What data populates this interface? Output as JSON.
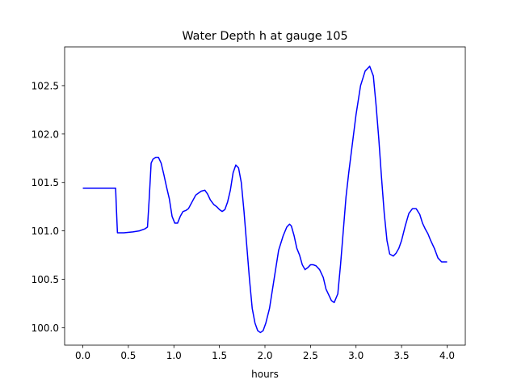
{
  "chart_data": {
    "type": "line",
    "title": "Water Depth h at gauge 105",
    "xlabel": "hours",
    "ylabel": "",
    "xlim": [
      -0.2,
      4.2
    ],
    "ylim": [
      99.82,
      102.9
    ],
    "x_ticks": [
      0.0,
      0.5,
      1.0,
      1.5,
      2.0,
      2.5,
      3.0,
      3.5,
      4.0
    ],
    "x_tick_labels": [
      "0.0",
      "0.5",
      "1.0",
      "1.5",
      "2.0",
      "2.5",
      "3.0",
      "3.5",
      "4.0"
    ],
    "y_ticks": [
      100.0,
      100.5,
      101.0,
      101.5,
      102.0,
      102.5
    ],
    "y_tick_labels": [
      "100.0",
      "100.5",
      "101.0",
      "101.5",
      "102.0",
      "102.5"
    ],
    "grid": false,
    "series": [
      {
        "color": "#0000ff",
        "x": [
          0.0,
          0.1,
          0.2,
          0.3,
          0.36,
          0.37,
          0.38,
          0.45,
          0.55,
          0.62,
          0.68,
          0.71,
          0.73,
          0.75,
          0.77,
          0.8,
          0.83,
          0.86,
          0.89,
          0.92,
          0.95,
          0.98,
          1.01,
          1.04,
          1.07,
          1.1,
          1.13,
          1.16,
          1.2,
          1.24,
          1.27,
          1.3,
          1.34,
          1.37,
          1.4,
          1.44,
          1.47,
          1.5,
          1.53,
          1.56,
          1.59,
          1.62,
          1.65,
          1.68,
          1.71,
          1.74,
          1.77,
          1.8,
          1.83,
          1.86,
          1.89,
          1.92,
          1.95,
          1.98,
          2.01,
          2.05,
          2.1,
          2.15,
          2.2,
          2.24,
          2.27,
          2.29,
          2.32,
          2.35,
          2.38,
          2.41,
          2.44,
          2.47,
          2.5,
          2.53,
          2.56,
          2.6,
          2.64,
          2.67,
          2.7,
          2.73,
          2.76,
          2.8,
          2.83,
          2.86,
          2.89,
          2.92,
          2.96,
          3.0,
          3.05,
          3.1,
          3.15,
          3.19,
          3.22,
          3.25,
          3.28,
          3.31,
          3.34,
          3.37,
          3.41,
          3.44,
          3.47,
          3.5,
          3.54,
          3.58,
          3.62,
          3.66,
          3.7,
          3.73,
          3.76,
          3.79,
          3.82,
          3.86,
          3.9,
          3.94,
          3.98,
          4.0
        ],
        "y": [
          101.44,
          101.44,
          101.44,
          101.44,
          101.44,
          101.2,
          100.98,
          100.98,
          100.99,
          101.0,
          101.02,
          101.04,
          101.35,
          101.7,
          101.74,
          101.76,
          101.76,
          101.7,
          101.58,
          101.45,
          101.33,
          101.15,
          101.08,
          101.08,
          101.15,
          101.2,
          101.21,
          101.23,
          101.3,
          101.37,
          101.39,
          101.41,
          101.42,
          101.38,
          101.32,
          101.27,
          101.25,
          101.22,
          101.2,
          101.22,
          101.3,
          101.42,
          101.6,
          101.68,
          101.65,
          101.5,
          101.2,
          100.85,
          100.5,
          100.2,
          100.05,
          99.97,
          99.95,
          99.97,
          100.05,
          100.2,
          100.5,
          100.8,
          100.95,
          101.04,
          101.07,
          101.05,
          100.95,
          100.82,
          100.75,
          100.65,
          100.6,
          100.62,
          100.65,
          100.65,
          100.64,
          100.6,
          100.52,
          100.4,
          100.34,
          100.28,
          100.26,
          100.35,
          100.65,
          101.0,
          101.35,
          101.6,
          101.9,
          102.2,
          102.5,
          102.65,
          102.7,
          102.6,
          102.3,
          101.95,
          101.55,
          101.18,
          100.9,
          100.76,
          100.74,
          100.77,
          100.82,
          100.9,
          101.05,
          101.18,
          101.23,
          101.23,
          101.17,
          101.08,
          101.02,
          100.97,
          100.9,
          100.82,
          100.72,
          100.68,
          100.68,
          100.68
        ]
      }
    ]
  }
}
